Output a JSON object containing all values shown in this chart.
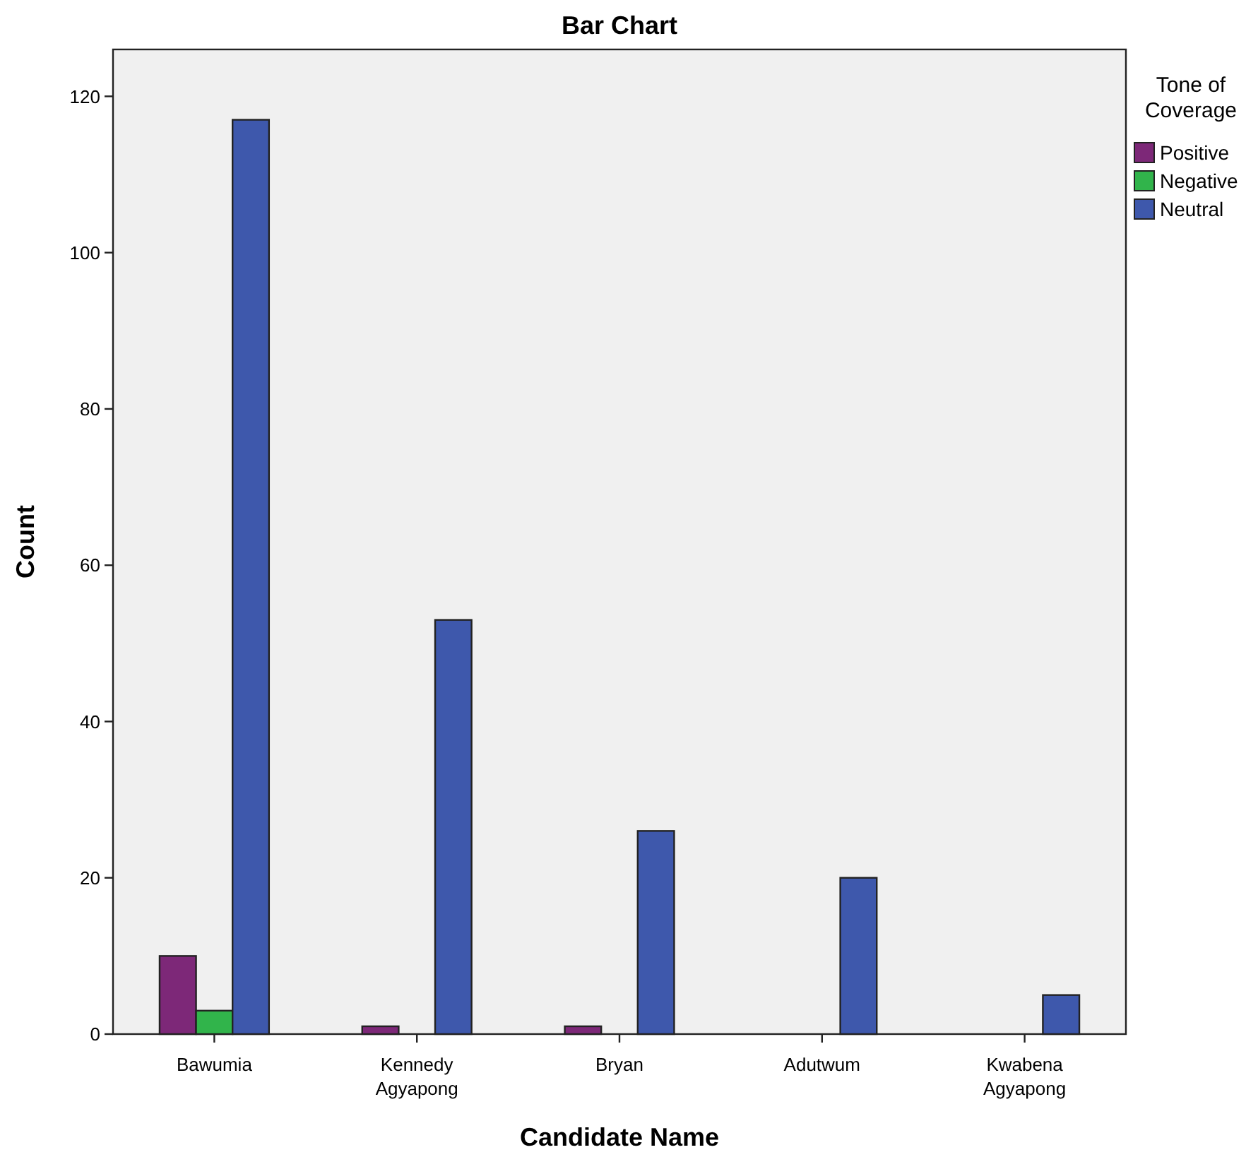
{
  "chart_data": {
    "type": "bar",
    "title": "Bar Chart",
    "xlabel": "Candidate Name",
    "ylabel": "Count",
    "legend_title": "Tone of Coverage",
    "categories": [
      "Bawumia",
      "Kennedy Agyapong",
      "Bryan",
      "Adutwum",
      "Kwabena Agyapong"
    ],
    "series": [
      {
        "name": "Positive",
        "color": "#7d2878",
        "values": [
          10,
          1,
          1,
          null,
          null
        ]
      },
      {
        "name": "Negative",
        "color": "#31b44b",
        "values": [
          3,
          null,
          null,
          null,
          null
        ]
      },
      {
        "name": "Neutral",
        "color": "#3e58ac",
        "values": [
          117,
          53,
          26,
          20,
          5
        ]
      }
    ],
    "ylim": [
      0,
      126
    ],
    "yticks": [
      0,
      20,
      40,
      60,
      80,
      100,
      120
    ],
    "grid": false,
    "legend": "right"
  }
}
